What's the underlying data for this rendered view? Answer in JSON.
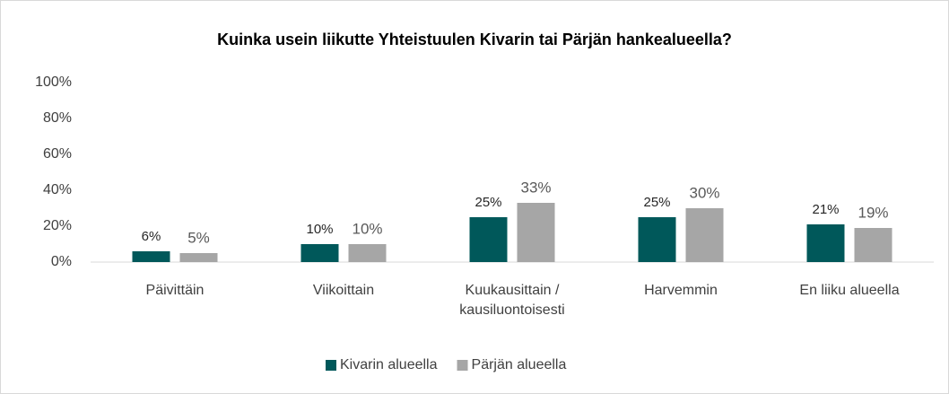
{
  "chart_data": {
    "type": "bar",
    "title": "Kuinka usein liikutte Yhteistuulen Kivarin tai Pärjän hankealueella?",
    "categories": [
      "Päivittäin",
      "Viikoittain",
      "Kuukausittain / kausiluontoisesti",
      "Harvemmin",
      "En liiku alueella"
    ],
    "series": [
      {
        "name": "Kivarin alueella",
        "color": "#00585a",
        "values": [
          6,
          10,
          25,
          25,
          21
        ],
        "value_labels": [
          "6%",
          "10%",
          "25%",
          "25%",
          "21%"
        ]
      },
      {
        "name": "Pärjän alueella",
        "color": "#a6a6a6",
        "values": [
          5,
          10,
          33,
          30,
          19
        ],
        "value_labels": [
          "5%",
          "10%",
          "33%",
          "30%",
          "19%"
        ]
      }
    ],
    "ylim": [
      0,
      100
    ],
    "yticks": [
      {
        "value": 0,
        "label": "0%"
      },
      {
        "value": 20,
        "label": "20%"
      },
      {
        "value": 40,
        "label": "40%"
      },
      {
        "value": 60,
        "label": "60%"
      },
      {
        "value": 80,
        "label": "80%"
      },
      {
        "value": 100,
        "label": "100%"
      }
    ],
    "grid": false,
    "legend": "bottom"
  }
}
